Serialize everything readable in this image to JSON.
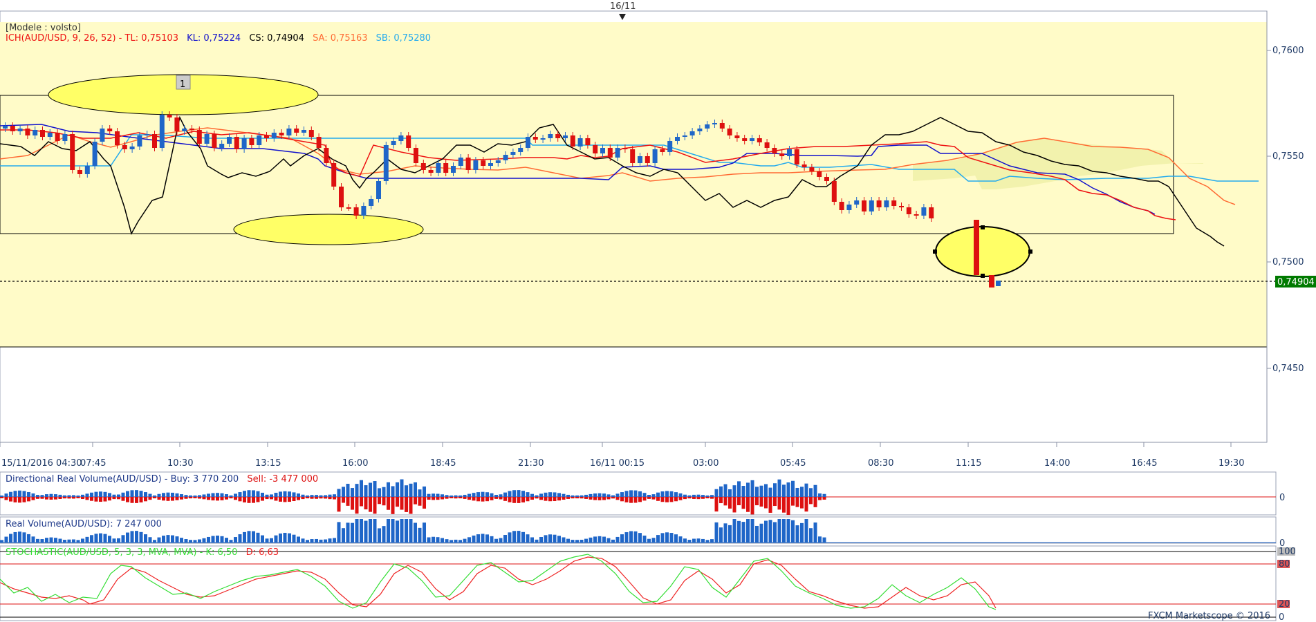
{
  "header": {
    "date_marker": "16/11"
  },
  "main_panel": {
    "model": "[Modele : volsto]",
    "ichimoku": {
      "name": "ICH(AUD/USD, 9, 26, 52) - ",
      "tl": "TL: 0,75103",
      "kl": "KL: 0,75224",
      "cs": "CS: 0,74904",
      "sa": "SA: 0,75163",
      "sb": "SB: 0,75280"
    },
    "annotation_label": "1",
    "current_price_label": "0,74904"
  },
  "volume_panel": {
    "title": "Directional Real Volume(AUD/USD) - ",
    "buy": "Buy: 3 770 200",
    "sell": "Sell: -3 477 000",
    "zero": "0"
  },
  "real_volume_panel": {
    "title": "Real Volume(AUD/USD): 7 247 000",
    "zero": "0"
  },
  "stochastic_panel": {
    "title": "STOCHASTIC(AUD/USD, 5, 3, 3, MVA, MVA) - ",
    "k": "K: 6,50",
    "d": "D: 6,63",
    "level_100": "100",
    "level_80": "80",
    "level_20": "20",
    "level_0": "0"
  },
  "footer": {
    "credit": "FXCM Marketscope © 2016"
  },
  "colors": {
    "background": "#fffbc8",
    "bull_candle": "#1f66c8",
    "bear_candle": "#dd1010",
    "tenkan": "#ee1111",
    "kijun": "#1111cc",
    "chikou": "#000000",
    "senkou_a": "#ff6a33",
    "senkou_b": "#22aaee",
    "stoch_k": "#33dd33",
    "stoch_d": "#ee2222",
    "price_badge": "#007a00"
  },
  "chart_data": {
    "type": "candlestick",
    "instrument": "AUD/USD",
    "y_ticks": [
      "0,7600",
      "0,7550",
      "0,7500",
      "0,7450"
    ],
    "ylim": [
      0.7415,
      0.762
    ],
    "x_ticks": [
      "15/11/2016 04:30",
      "07:45",
      "10:30",
      "13:15",
      "16:00",
      "18:45",
      "21:30",
      "16/11 00:15",
      "03:00",
      "05:45",
      "08:30",
      "11:15",
      "14:00",
      "16:45",
      "19:30"
    ],
    "last_price": 0.74904,
    "stochastic_levels": [
      100,
      80,
      20,
      0
    ]
  }
}
